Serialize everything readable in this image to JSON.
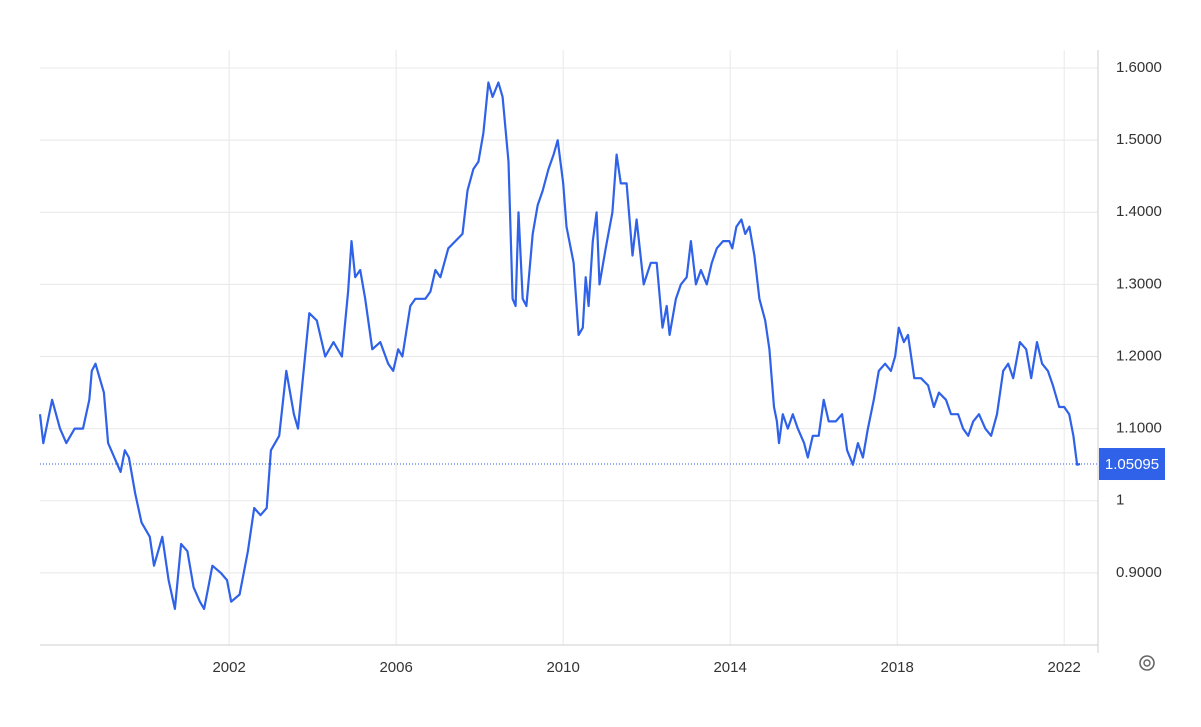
{
  "chart_data": {
    "type": "line",
    "color": "#2f62e8",
    "x": [
      1997.47,
      1997.55,
      1997.76,
      1997.95,
      1998.1,
      1998.3,
      1998.5,
      1998.65,
      1998.71,
      1998.8,
      1998.9,
      1999.0,
      1999.1,
      1999.4,
      1999.5,
      1999.6,
      1999.75,
      1999.9,
      2000.1,
      2000.2,
      2000.4,
      2000.55,
      2000.7,
      2000.85,
      2001.0,
      2001.15,
      2001.3,
      2001.4,
      2001.5,
      2001.6,
      2001.8,
      2001.95,
      2002.05,
      2002.25,
      2002.45,
      2002.6,
      2002.75,
      2002.9,
      2003.0,
      2003.2,
      2003.37,
      2003.55,
      2003.65,
      2003.75,
      2003.92,
      2004.1,
      2004.3,
      2004.5,
      2004.7,
      2004.85,
      2004.93,
      2005.02,
      2005.14,
      2005.26,
      2005.43,
      2005.62,
      2005.81,
      2005.93,
      2006.05,
      2006.15,
      2006.34,
      2006.46,
      2006.7,
      2006.82,
      2006.94,
      2007.06,
      2007.25,
      2007.42,
      2007.59,
      2007.71,
      2007.85,
      2007.97,
      2008.09,
      2008.21,
      2008.31,
      2008.45,
      2008.55,
      2008.69,
      2008.79,
      2008.86,
      2008.93,
      2009.03,
      2009.12,
      2009.27,
      2009.39,
      2009.51,
      2009.65,
      2009.77,
      2009.87,
      2010.0,
      2010.08,
      2010.25,
      2010.37,
      2010.47,
      2010.54,
      2010.61,
      2010.71,
      2010.8,
      2010.87,
      2011.02,
      2011.18,
      2011.28,
      2011.38,
      2011.52,
      2011.66,
      2011.76,
      2011.93,
      2012.1,
      2012.24,
      2012.38,
      2012.48,
      2012.55,
      2012.7,
      2012.82,
      2012.96,
      2013.06,
      2013.18,
      2013.3,
      2013.44,
      2013.56,
      2013.68,
      2013.83,
      2013.98,
      2014.05,
      2014.15,
      2014.27,
      2014.36,
      2014.46,
      2014.58,
      2014.7,
      2014.84,
      2014.94,
      2015.05,
      2015.12,
      2015.17,
      2015.26,
      2015.38,
      2015.5,
      2015.62,
      2015.77,
      2015.86,
      2015.98,
      2016.12,
      2016.24,
      2016.36,
      2016.53,
      2016.68,
      2016.8,
      2016.94,
      2017.06,
      2017.18,
      2017.3,
      2017.44,
      2017.56,
      2017.71,
      2017.85,
      2017.95,
      2018.04,
      2018.16,
      2018.26,
      2018.41,
      2018.57,
      2018.74,
      2018.88,
      2019.0,
      2019.17,
      2019.29,
      2019.46,
      2019.58,
      2019.7,
      2019.82,
      2019.96,
      2020.11,
      2020.25,
      2020.39,
      2020.54,
      2020.66,
      2020.78,
      2020.94,
      2021.09,
      2021.21,
      2021.35,
      2021.47,
      2021.61,
      2021.73,
      2021.88,
      2022.0,
      2022.12,
      2022.22,
      2022.31,
      2022.38
    ],
    "values": [
      1.12,
      1.08,
      1.14,
      1.1,
      1.08,
      1.1,
      1.1,
      1.14,
      1.18,
      1.19,
      1.17,
      1.15,
      1.08,
      1.04,
      1.07,
      1.06,
      1.01,
      0.97,
      0.95,
      0.91,
      0.95,
      0.89,
      0.85,
      0.94,
      0.93,
      0.88,
      0.86,
      0.85,
      0.88,
      0.91,
      0.9,
      0.89,
      0.86,
      0.87,
      0.93,
      0.99,
      0.98,
      0.99,
      1.07,
      1.09,
      1.18,
      1.12,
      1.1,
      1.16,
      1.26,
      1.25,
      1.2,
      1.22,
      1.2,
      1.29,
      1.36,
      1.31,
      1.32,
      1.28,
      1.21,
      1.22,
      1.19,
      1.18,
      1.21,
      1.2,
      1.27,
      1.28,
      1.28,
      1.29,
      1.32,
      1.31,
      1.35,
      1.36,
      1.37,
      1.43,
      1.46,
      1.47,
      1.51,
      1.58,
      1.56,
      1.58,
      1.56,
      1.47,
      1.28,
      1.27,
      1.4,
      1.28,
      1.27,
      1.37,
      1.41,
      1.43,
      1.46,
      1.48,
      1.5,
      1.44,
      1.38,
      1.33,
      1.23,
      1.24,
      1.31,
      1.27,
      1.36,
      1.4,
      1.3,
      1.35,
      1.4,
      1.48,
      1.44,
      1.44,
      1.34,
      1.39,
      1.3,
      1.33,
      1.33,
      1.24,
      1.27,
      1.23,
      1.28,
      1.3,
      1.31,
      1.36,
      1.3,
      1.32,
      1.3,
      1.33,
      1.35,
      1.36,
      1.36,
      1.35,
      1.38,
      1.39,
      1.37,
      1.38,
      1.34,
      1.28,
      1.25,
      1.21,
      1.13,
      1.11,
      1.08,
      1.12,
      1.1,
      1.12,
      1.1,
      1.08,
      1.06,
      1.09,
      1.09,
      1.14,
      1.11,
      1.11,
      1.12,
      1.07,
      1.05,
      1.08,
      1.06,
      1.1,
      1.14,
      1.18,
      1.19,
      1.18,
      1.2,
      1.24,
      1.22,
      1.23,
      1.17,
      1.17,
      1.16,
      1.13,
      1.15,
      1.14,
      1.12,
      1.12,
      1.1,
      1.09,
      1.11,
      1.12,
      1.1,
      1.09,
      1.12,
      1.18,
      1.19,
      1.17,
      1.22,
      1.21,
      1.17,
      1.22,
      1.19,
      1.18,
      1.16,
      1.13,
      1.13,
      1.12,
      1.09,
      1.05,
      1.05095
    ],
    "xlim": [
      1997.47,
      2022.81
    ],
    "xticks": [
      2002,
      2006,
      2010,
      2014,
      2018,
      2022
    ],
    "ylim": [
      0.8,
      1.625
    ],
    "yticks": [
      {
        "value": 0.9,
        "label": "0.9000"
      },
      1,
      {
        "value": 1.1,
        "label": "1.1000"
      },
      {
        "value": 1.2,
        "label": "1.2000"
      },
      {
        "value": 1.3,
        "label": "1.3000"
      },
      {
        "value": 1.4,
        "label": "1.4000"
      },
      {
        "value": 1.5,
        "label": "1.5000"
      },
      {
        "value": 1.6,
        "label": "1.6000"
      }
    ],
    "last_value": 1.05095,
    "grid": true
  }
}
